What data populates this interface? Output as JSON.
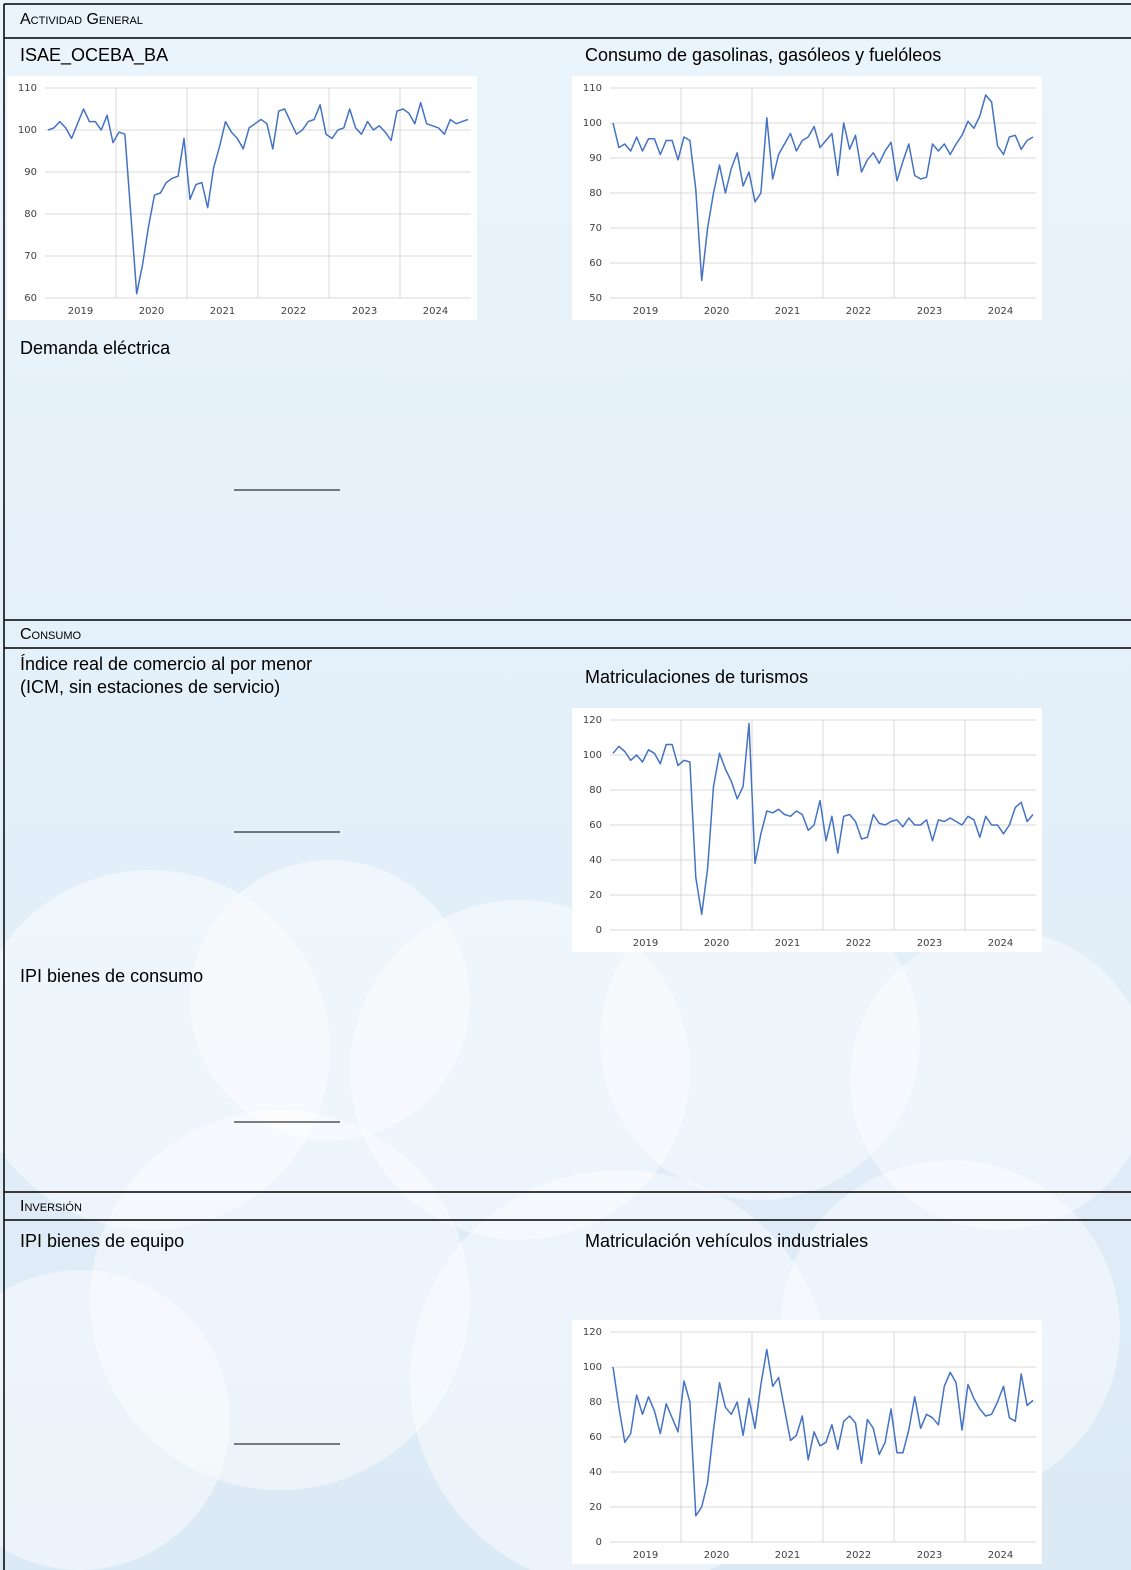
{
  "sections": [
    {
      "title": "Actividad General",
      "panels": [
        {
          "title": "Demanda eléctrica"
        }
      ]
    },
    {
      "title": "Consumo",
      "panels": [
        {
          "title": [
            "Índice real de comercio al por menor",
            "(ICM, sin estaciones de servicio)"
          ]
        },
        {
          "title": "IPI bienes de consumo"
        }
      ]
    },
    {
      "title": "Inversión",
      "panels": [
        {
          "title": "IPI bienes de equipo"
        }
      ]
    }
  ],
  "chart_data": [
    {
      "type": "line",
      "title": "ISAE_OCEBA_BA",
      "color": "#4472c4",
      "categories": [
        null,
        null,
        null,
        null,
        null,
        "2019",
        null,
        null,
        null,
        null,
        null,
        null,
        null,
        null,
        null,
        null,
        null,
        "2020",
        null,
        null,
        null,
        null,
        null,
        null,
        null,
        null,
        null,
        null,
        null,
        "2021",
        null,
        null,
        null,
        null,
        null,
        null,
        null,
        null,
        null,
        null,
        null,
        "2022",
        null,
        null,
        null,
        null,
        null,
        null,
        null,
        null,
        null,
        null,
        null,
        "2023",
        null,
        null,
        null,
        null,
        null,
        null,
        null,
        null,
        null,
        null,
        null,
        "2024",
        null,
        null,
        null,
        null,
        null,
        null
      ],
      "values": [
        100,
        100.5,
        102,
        100.5,
        98,
        101.5,
        105,
        102,
        102,
        100,
        103.5,
        97,
        99.5,
        99,
        80,
        61,
        68,
        77,
        84.5,
        85,
        87.5,
        88.5,
        89,
        98,
        83.5,
        87,
        87.5,
        81.5,
        91,
        96,
        102,
        99.5,
        98,
        95.5,
        100.5,
        101.5,
        102.5,
        101.5,
        95.5,
        104.5,
        105,
        102,
        99,
        100,
        102,
        102.5,
        106,
        99,
        98,
        100,
        100.5,
        105,
        100.5,
        99,
        102,
        100,
        101,
        99.5,
        97.5,
        104.5,
        105,
        104,
        101.5,
        106.5,
        101.5,
        101,
        100.5,
        99,
        102.5,
        101.5,
        102,
        102.5
      ],
      "ylim": [
        60,
        110
      ],
      "yticks": [
        60,
        70,
        80,
        90,
        100,
        110
      ]
    },
    {
      "type": "line",
      "title": "Consumo de gasolinas, gasóleos y fuelóleos",
      "color": "#4472c4",
      "categories": [
        null,
        null,
        null,
        null,
        null,
        "2019",
        null,
        null,
        null,
        null,
        null,
        null,
        null,
        null,
        null,
        null,
        null,
        "2020",
        null,
        null,
        null,
        null,
        null,
        null,
        null,
        null,
        null,
        null,
        null,
        "2021",
        null,
        null,
        null,
        null,
        null,
        null,
        null,
        null,
        null,
        null,
        null,
        "2022",
        null,
        null,
        null,
        null,
        null,
        null,
        null,
        null,
        null,
        null,
        null,
        "2023",
        null,
        null,
        null,
        null,
        null,
        null,
        null,
        null,
        null,
        null,
        null,
        "2024",
        null,
        null,
        null,
        null,
        null,
        null
      ],
      "values": [
        100,
        93,
        94,
        92,
        96,
        92,
        95.5,
        95.5,
        91,
        95,
        95,
        89.5,
        96,
        95,
        81,
        55,
        70,
        80,
        88,
        80,
        87,
        91.5,
        82,
        86,
        77.5,
        80,
        101.5,
        84,
        91,
        94,
        97,
        92,
        95,
        96,
        99,
        93,
        95,
        97,
        85,
        100,
        92.5,
        96.5,
        86,
        89.5,
        91.5,
        88.5,
        92,
        94.5,
        83.5,
        89,
        94,
        85,
        84,
        84.5,
        94,
        92,
        94,
        91,
        94,
        96.5,
        100.5,
        98.5,
        102,
        108,
        106,
        93.5,
        91,
        96,
        96.5,
        92.5,
        95,
        96
      ],
      "ylim": [
        50,
        110
      ],
      "yticks": [
        50,
        60,
        70,
        80,
        90,
        100,
        110
      ]
    },
    {
      "type": "line",
      "title": "Matriculaciones de turismos",
      "color": "#4472c4",
      "categories": [
        null,
        null,
        null,
        null,
        null,
        "2019",
        null,
        null,
        null,
        null,
        null,
        null,
        null,
        null,
        null,
        null,
        null,
        "2020",
        null,
        null,
        null,
        null,
        null,
        null,
        null,
        null,
        null,
        null,
        null,
        "2021",
        null,
        null,
        null,
        null,
        null,
        null,
        null,
        null,
        null,
        null,
        null,
        "2022",
        null,
        null,
        null,
        null,
        null,
        null,
        null,
        null,
        null,
        null,
        null,
        "2023",
        null,
        null,
        null,
        null,
        null,
        null,
        null,
        null,
        null,
        null,
        null,
        "2024",
        null,
        null,
        null,
        null,
        null,
        null
      ],
      "values": [
        101,
        105,
        102,
        97,
        100,
        96,
        103,
        101,
        95,
        106,
        106,
        94,
        97,
        96,
        30,
        9,
        35,
        82,
        101,
        92,
        85,
        75,
        82,
        118,
        38,
        55,
        68,
        67,
        69,
        66,
        65,
        68,
        66,
        57,
        60,
        74,
        51,
        65,
        44,
        65,
        66,
        62,
        52,
        53,
        66,
        61,
        60,
        62,
        63,
        59,
        64,
        60,
        60,
        63,
        51,
        63,
        62,
        64,
        62,
        60,
        65,
        63,
        53,
        65,
        60,
        60,
        55,
        60,
        70,
        73,
        62,
        66
      ],
      "ylim": [
        0,
        120
      ],
      "yticks": [
        0,
        20,
        40,
        60,
        80,
        100,
        120
      ]
    },
    {
      "type": "line",
      "title": "Matriculación vehículos industriales",
      "color": "#4472c4",
      "categories": [
        null,
        null,
        null,
        null,
        null,
        "2019",
        null,
        null,
        null,
        null,
        null,
        null,
        null,
        null,
        null,
        null,
        null,
        "2020",
        null,
        null,
        null,
        null,
        null,
        null,
        null,
        null,
        null,
        null,
        null,
        "2021",
        null,
        null,
        null,
        null,
        null,
        null,
        null,
        null,
        null,
        null,
        null,
        "2022",
        null,
        null,
        null,
        null,
        null,
        null,
        null,
        null,
        null,
        null,
        null,
        "2023",
        null,
        null,
        null,
        null,
        null,
        null,
        null,
        null,
        null,
        null,
        null,
        "2024",
        null,
        null,
        null,
        null,
        null,
        null
      ],
      "values": [
        100,
        77,
        57,
        62,
        84,
        73,
        83,
        75,
        62,
        79,
        71,
        63,
        92,
        80,
        15,
        20,
        34,
        64,
        91,
        77,
        73,
        80,
        61,
        82,
        65,
        90,
        110,
        89,
        94,
        76,
        58,
        61,
        72,
        47,
        63,
        55,
        57,
        67,
        53,
        69,
        72,
        68,
        45,
        70,
        65,
        50,
        57,
        76,
        51,
        51,
        64,
        83,
        65,
        73,
        71,
        67,
        89,
        97,
        91,
        64,
        90,
        82,
        76,
        72,
        73,
        80,
        89,
        71,
        69,
        96,
        78,
        81
      ],
      "ylim": [
        0,
        120
      ],
      "yticks": [
        0,
        20,
        40,
        60,
        80,
        100,
        120
      ]
    }
  ]
}
